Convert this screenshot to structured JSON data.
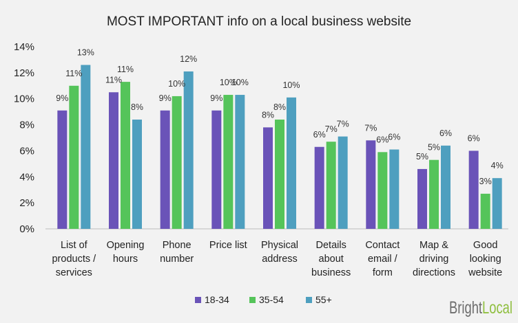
{
  "chart_data": {
    "type": "bar",
    "title": "MOST IMPORTANT info on a local business website",
    "categories": [
      [
        "List of",
        "products /",
        "services"
      ],
      [
        "Opening",
        "hours"
      ],
      [
        "Phone",
        "number"
      ],
      [
        "Price list"
      ],
      [
        "Physical",
        "address"
      ],
      [
        "Details",
        "about",
        "business"
      ],
      [
        "Contact",
        "email /",
        "form"
      ],
      [
        "Map &",
        "driving",
        "directions"
      ],
      [
        "Good",
        "looking",
        "website"
      ]
    ],
    "series": [
      {
        "name": "18-34",
        "color": "#6a53b8",
        "values": [
          9.1,
          10.5,
          9.1,
          9.1,
          7.8,
          6.3,
          6.8,
          4.6,
          6.0
        ],
        "labels": [
          "9%",
          "11%",
          "9%",
          "9%",
          "8%",
          "6%",
          "7%",
          "5%",
          "6%"
        ]
      },
      {
        "name": "35-54",
        "color": "#55c45a",
        "values": [
          11.0,
          11.3,
          10.2,
          10.3,
          8.4,
          6.7,
          5.9,
          5.3,
          2.7
        ],
        "labels": [
          "11%",
          "11%",
          "10%",
          "10%",
          "8%",
          "7%",
          "6%",
          "5%",
          "3%"
        ]
      },
      {
        "name": "55+",
        "color": "#4e9fbf",
        "values": [
          12.6,
          8.4,
          12.1,
          10.3,
          10.1,
          7.1,
          6.1,
          6.4,
          3.9
        ],
        "labels": [
          "13%",
          "8%",
          "12%",
          "10%",
          "10%",
          "7%",
          "6%",
          "6%",
          "4%"
        ]
      }
    ],
    "y_ticks": [
      "0%",
      "2%",
      "4%",
      "6%",
      "8%",
      "10%",
      "12%",
      "14%"
    ],
    "ylim": [
      0,
      14
    ],
    "grid": false,
    "legend_position": "bottom"
  },
  "logo": {
    "text": "BrightLocal",
    "part1": "Bright",
    "part2": "Local"
  }
}
